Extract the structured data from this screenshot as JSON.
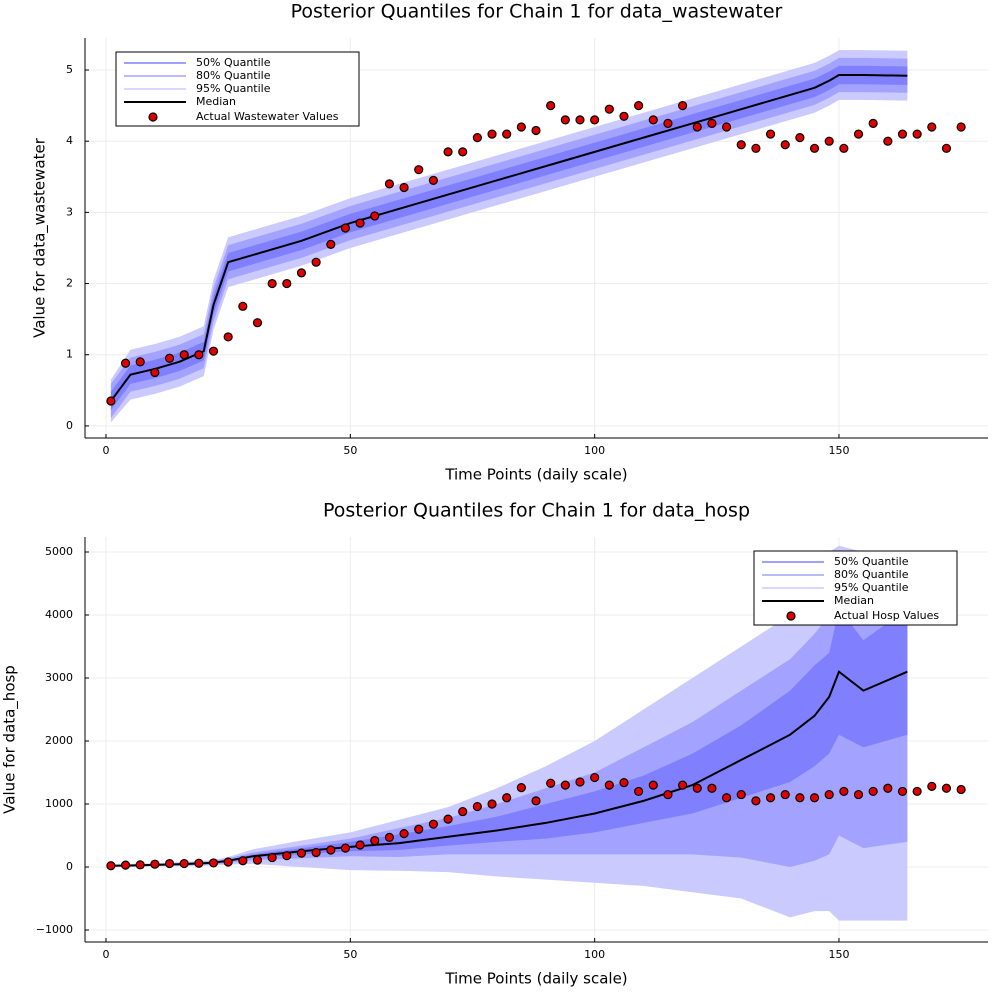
{
  "chart_data": [
    {
      "type": "line",
      "title": "Posterior Quantiles for Chain 1 for data_wastewater",
      "x_label": "Time Points (daily scale)",
      "y_label": "Value for data_wastewater",
      "xlim": [
        -4.3,
        180.5
      ],
      "xticks": [
        0,
        50,
        100,
        150
      ],
      "ylim": [
        -0.17,
        5.45
      ],
      "yticks": [
        0,
        1,
        2,
        3,
        4,
        5
      ],
      "grid": true,
      "legend": "top left",
      "x": [
        1,
        5,
        10,
        15,
        20,
        22,
        25,
        30,
        40,
        50,
        60,
        70,
        80,
        90,
        100,
        110,
        120,
        130,
        140,
        145,
        148,
        150,
        155,
        164
      ],
      "bands": [
        {
          "name": "95% Quantile",
          "color": "#cacaff",
          "lower": [
            0.05,
            0.37,
            0.45,
            0.55,
            0.7,
            1.35,
            1.95,
            2.05,
            2.25,
            2.5,
            2.7,
            2.9,
            3.1,
            3.3,
            3.5,
            3.7,
            3.9,
            4.1,
            4.3,
            4.4,
            4.5,
            4.58,
            4.58,
            4.57
          ],
          "upper": [
            0.65,
            1.07,
            1.15,
            1.25,
            1.4,
            2.05,
            2.65,
            2.75,
            2.95,
            3.2,
            3.4,
            3.6,
            3.8,
            4.0,
            4.2,
            4.4,
            4.6,
            4.8,
            5.0,
            5.1,
            5.2,
            5.28,
            5.28,
            5.27
          ]
        },
        {
          "name": "80% Quantile",
          "color": "#a3a3ff",
          "lower": [
            0.11,
            0.48,
            0.56,
            0.66,
            0.81,
            1.46,
            2.06,
            2.16,
            2.36,
            2.61,
            2.81,
            3.01,
            3.21,
            3.41,
            3.61,
            3.81,
            4.01,
            4.21,
            4.41,
            4.51,
            4.61,
            4.69,
            4.69,
            4.68
          ],
          "upper": [
            0.59,
            0.96,
            1.04,
            1.14,
            1.29,
            1.94,
            2.54,
            2.64,
            2.84,
            3.09,
            3.29,
            3.49,
            3.69,
            3.89,
            4.09,
            4.29,
            4.49,
            4.69,
            4.89,
            4.99,
            5.09,
            5.17,
            5.17,
            5.16
          ]
        },
        {
          "name": "50% Quantile",
          "color": "#8080ff",
          "lower": [
            0.22,
            0.59,
            0.67,
            0.77,
            0.92,
            1.57,
            2.17,
            2.27,
            2.47,
            2.72,
            2.92,
            3.12,
            3.32,
            3.52,
            3.72,
            3.92,
            4.12,
            4.32,
            4.52,
            4.62,
            4.72,
            4.8,
            4.8,
            4.79
          ],
          "upper": [
            0.48,
            0.85,
            0.93,
            1.03,
            1.18,
            1.83,
            2.43,
            2.53,
            2.73,
            2.98,
            3.18,
            3.38,
            3.58,
            3.78,
            3.98,
            4.18,
            4.38,
            4.58,
            4.78,
            4.88,
            4.98,
            5.06,
            5.06,
            5.05
          ]
        }
      ],
      "series": [
        {
          "name": "Median",
          "color": "#000000",
          "values": [
            0.35,
            0.72,
            0.8,
            0.9,
            1.05,
            1.7,
            2.3,
            2.4,
            2.6,
            2.85,
            3.05,
            3.25,
            3.45,
            3.65,
            3.85,
            4.05,
            4.25,
            4.45,
            4.65,
            4.75,
            4.85,
            4.93,
            4.93,
            4.92
          ]
        }
      ],
      "points": {
        "name": "Actual Wastewater Values",
        "color": "#e00000",
        "x": [
          1,
          4,
          7,
          10,
          13,
          16,
          19,
          22,
          25,
          28,
          31,
          34,
          37,
          40,
          43,
          46,
          49,
          52,
          55,
          58,
          61,
          64,
          67,
          70,
          73,
          76,
          79,
          82,
          85,
          88,
          91,
          94,
          97,
          100,
          103,
          106,
          109,
          112,
          115,
          118,
          121,
          124,
          127,
          130,
          133,
          136,
          139,
          142,
          145,
          148,
          151,
          154,
          157,
          160,
          163,
          166,
          169,
          172,
          175
        ],
        "values": [
          0.35,
          0.88,
          0.9,
          0.75,
          0.95,
          1.0,
          1.0,
          1.05,
          1.25,
          1.68,
          1.45,
          2.0,
          2.0,
          2.15,
          2.3,
          2.55,
          2.78,
          2.85,
          2.95,
          3.4,
          3.35,
          3.6,
          3.45,
          3.85,
          3.85,
          4.05,
          4.1,
          4.1,
          4.2,
          4.15,
          4.5,
          4.3,
          4.3,
          4.3,
          4.45,
          4.35,
          4.5,
          4.3,
          4.25,
          4.5,
          4.2,
          4.25,
          4.2,
          3.95,
          3.9,
          4.1,
          3.95,
          4.05,
          3.9,
          4.0,
          3.9,
          4.1,
          4.25,
          4.0,
          4.1,
          4.1,
          4.2,
          3.9,
          4.2
        ]
      }
    },
    {
      "type": "line",
      "title": "Posterior Quantiles for Chain 1 for data_hosp",
      "x_label": "Time Points (daily scale)",
      "y_label": "Value for data_hosp",
      "xlim": [
        -4.3,
        180.5
      ],
      "xticks": [
        0,
        50,
        100,
        150
      ],
      "ylim": [
        -1190,
        5238
      ],
      "yticks": [
        {
          "value": -1000,
          "label": "−1000"
        },
        0,
        1000,
        2000,
        3000,
        4000,
        5000
      ],
      "grid": true,
      "legend": "top right",
      "x": [
        1,
        5,
        10,
        15,
        20,
        22,
        25,
        30,
        40,
        50,
        60,
        70,
        80,
        90,
        100,
        110,
        120,
        130,
        140,
        145,
        148,
        150,
        155,
        164
      ],
      "bands": [
        {
          "name": "95% Quantile",
          "color": "#cacaff",
          "lower": [
            0,
            0,
            10,
            15,
            20,
            25,
            40,
            50,
            0,
            -50,
            -60,
            -80,
            -150,
            -200,
            -250,
            -300,
            -400,
            -500,
            -800,
            -700,
            -700,
            -850,
            -850,
            -850
          ],
          "upper": [
            40,
            50,
            60,
            80,
            100,
            110,
            160,
            280,
            420,
            550,
            750,
            950,
            1250,
            1600,
            2000,
            2500,
            3000,
            3500,
            4000,
            4600,
            5000,
            5100,
            5000,
            5000
          ]
        },
        {
          "name": "80% Quantile",
          "color": "#a3a3ff",
          "lower": [
            5,
            10,
            20,
            25,
            35,
            40,
            65,
            110,
            140,
            170,
            160,
            200,
            200,
            200,
            200,
            200,
            200,
            150,
            0,
            100,
            200,
            500,
            300,
            400
          ],
          "upper": [
            32,
            40,
            50,
            65,
            85,
            95,
            135,
            230,
            340,
            450,
            620,
            780,
            1000,
            1250,
            1500,
            1900,
            2300,
            2800,
            3300,
            3700,
            4000,
            4300,
            4100,
            4300
          ]
        },
        {
          "name": "50% Quantile",
          "color": "#8080ff",
          "lower": [
            12,
            16,
            25,
            35,
            48,
            55,
            85,
            145,
            200,
            250,
            270,
            340,
            400,
            450,
            550,
            700,
            850,
            1100,
            1350,
            1600,
            1800,
            2100,
            1900,
            2100
          ],
          "upper": [
            25,
            32,
            45,
            55,
            72,
            82,
            115,
            200,
            300,
            400,
            520,
            650,
            800,
            1000,
            1200,
            1450,
            1800,
            2250,
            2800,
            3200,
            3400,
            4100,
            3600,
            4100
          ]
        }
      ],
      "series": [
        {
          "name": "Median",
          "color": "#000000",
          "values": [
            20,
            25,
            35,
            45,
            60,
            70,
            100,
            170,
            250,
            320,
            380,
            480,
            580,
            700,
            850,
            1050,
            1300,
            1700,
            2100,
            2400,
            2700,
            3100,
            2800,
            3100
          ]
        }
      ],
      "points": {
        "name": "Actual Hosp Values",
        "color": "#e00000",
        "x": [
          1,
          4,
          7,
          10,
          13,
          16,
          19,
          22,
          25,
          28,
          31,
          34,
          37,
          40,
          43,
          46,
          49,
          52,
          55,
          58,
          61,
          64,
          67,
          70,
          73,
          76,
          79,
          82,
          85,
          88,
          91,
          94,
          97,
          100,
          103,
          106,
          109,
          112,
          115,
          118,
          121,
          124,
          127,
          130,
          133,
          136,
          139,
          142,
          145,
          148,
          151,
          154,
          157,
          160,
          163,
          166,
          169,
          172,
          175
        ],
        "values": [
          20,
          30,
          35,
          45,
          55,
          55,
          60,
          65,
          80,
          100,
          110,
          150,
          180,
          220,
          230,
          270,
          300,
          350,
          420,
          470,
          530,
          600,
          680,
          760,
          880,
          960,
          1000,
          1100,
          1260,
          1050,
          1330,
          1300,
          1350,
          1420,
          1300,
          1340,
          1200,
          1300,
          1150,
          1300,
          1250,
          1250,
          1100,
          1150,
          1050,
          1100,
          1150,
          1100,
          1100,
          1150,
          1200,
          1150,
          1200,
          1250,
          1200,
          1200,
          1280,
          1250,
          1230
        ]
      }
    }
  ]
}
